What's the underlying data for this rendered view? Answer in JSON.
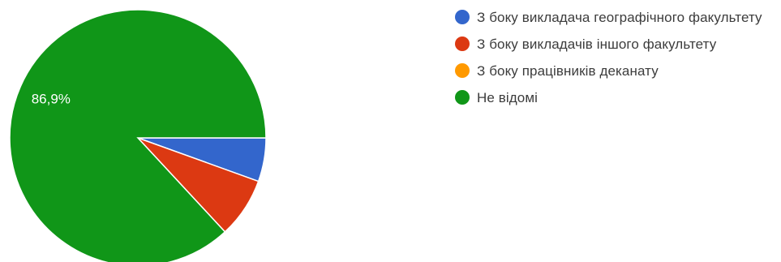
{
  "chart_data": {
    "type": "pie",
    "title": "",
    "categories": [
      "З боку викладача географічного факультету",
      "З боку викладачів іншого факультету",
      "З боку працівників деканату",
      "Не відомі"
    ],
    "values": [
      5.5,
      7.6,
      0,
      86.9
    ],
    "colors": [
      "#3366cc",
      "#dc3912",
      "#ff9900",
      "#109618"
    ],
    "data_labels": [
      "",
      "",
      "",
      "86,9%"
    ],
    "legend_position": "right"
  },
  "legend": {
    "items": [
      {
        "label": "З боку викладача географічного факультету",
        "color": "#3366cc"
      },
      {
        "label": "З боку викладачів іншого факультету",
        "color": "#dc3912"
      },
      {
        "label": "З боку працівників деканату",
        "color": "#ff9900"
      },
      {
        "label": "Не відомі",
        "color": "#109618"
      }
    ]
  }
}
